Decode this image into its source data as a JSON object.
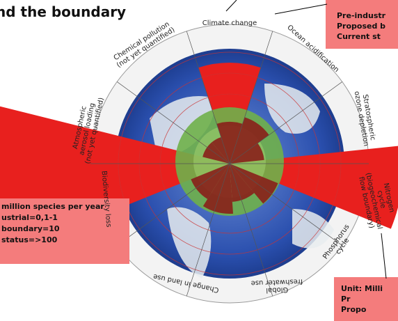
{
  "title": "nd the boundary",
  "top_box": {
    "lines": [
      "Pre-industr",
      "Proposed b",
      "Current st"
    ]
  },
  "left_box": {
    "lines": [
      "million species per year",
      "ustrial=0,1-1",
      "boundary=10",
      "status=>100"
    ]
  },
  "bottom_box": {
    "lines": [
      "Unit: Milli",
      "Pr",
      "Propo"
    ]
  },
  "segments": [
    {
      "lines": [
        "Climate change"
      ]
    },
    {
      "lines": [
        "Ocean acidification"
      ]
    },
    {
      "lines": [
        "Stratospheric",
        "ozone depletion"
      ]
    },
    {
      "lines": [
        "Nitrogen",
        "cycle",
        "(biogeochemical",
        "flow boundary)"
      ]
    },
    {
      "lines": [
        "Phosphorus",
        "cycle"
      ]
    },
    {
      "lines": [
        "Global",
        "freshwater use"
      ]
    },
    {
      "lines": [
        "Change in land use"
      ]
    },
    {
      "lines": [
        "Biodiversity loss"
      ]
    },
    {
      "lines": [
        "Atmospheric",
        "aerosol loading",
        "(not yet quantified)"
      ]
    },
    {
      "lines": [
        "Chemical pollution",
        "(not yet quantified)"
      ]
    }
  ]
}
